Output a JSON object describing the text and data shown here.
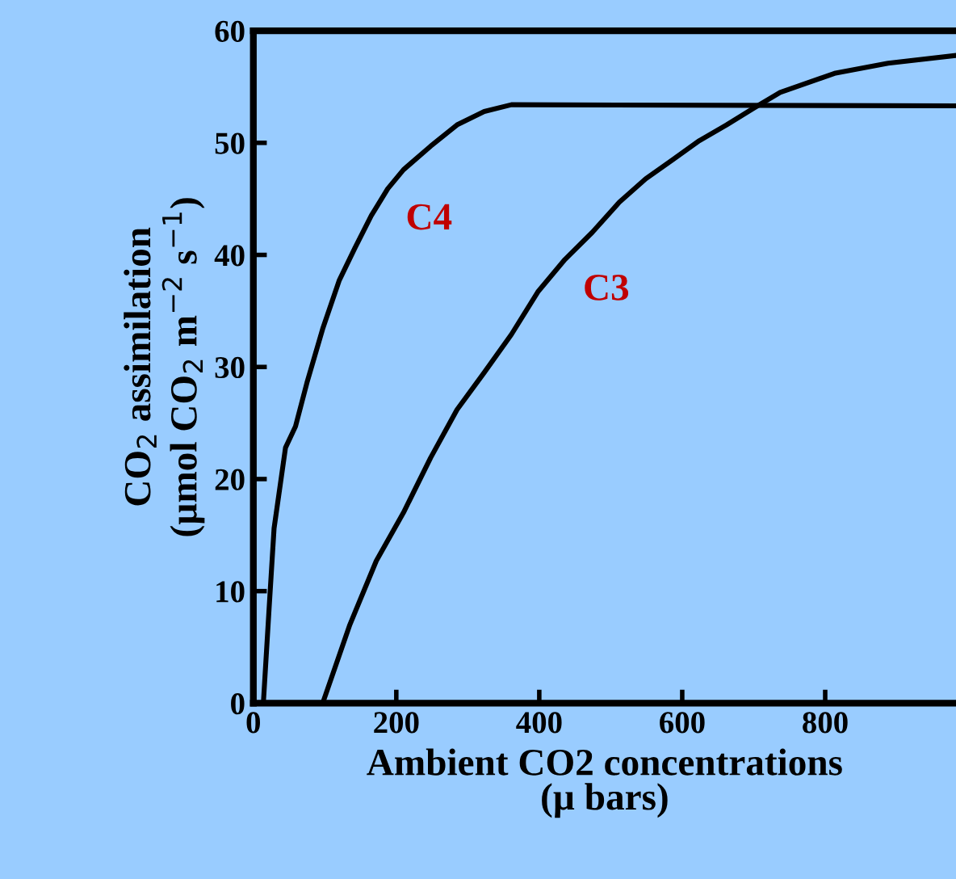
{
  "chart_data": {
    "type": "line",
    "xlabel": "Ambient CO2 concentrations\n(µ bars)",
    "ylabel": "CO$_{2}$ assimilation\n(µmol CO$_{2}$ m$^{−2}$ s$^{−1}$)",
    "xlim": [
      0,
      983
    ],
    "xticks": [
      0,
      200,
      400,
      600,
      800
    ],
    "ylim": [
      0,
      60
    ],
    "yticks": [
      0,
      10,
      20,
      30,
      40,
      50,
      60
    ],
    "grid": false,
    "legend": false,
    "marker": "none",
    "line_style": "solid",
    "series": [
      {
        "name": "C4",
        "color": "#000000",
        "x": [
          14,
          22,
          29,
          45,
          59,
          75,
          97,
          120,
          142,
          165,
          188,
          210,
          248,
          285,
          323,
          361,
          983
        ],
        "values": [
          0,
          8.4,
          15.6,
          22.8,
          24.7,
          28.6,
          33.4,
          37.7,
          40.6,
          43.5,
          45.9,
          47.6,
          49.7,
          51.6,
          52.8,
          53.4,
          53.3
        ]
      },
      {
        "name": "C3",
        "color": "#000000",
        "x": [
          97,
          135,
          172,
          210,
          248,
          285,
          323,
          361,
          398,
          436,
          474,
          512,
          549,
          587,
          624,
          662,
          700,
          737,
          813,
          888,
          983
        ],
        "values": [
          0,
          7.0,
          12.7,
          17.0,
          21.9,
          26.2,
          29.5,
          32.9,
          36.7,
          39.6,
          42.0,
          44.7,
          46.8,
          48.5,
          50.2,
          51.6,
          53.1,
          54.5,
          56.2,
          57.1,
          57.8
        ]
      }
    ]
  }
}
